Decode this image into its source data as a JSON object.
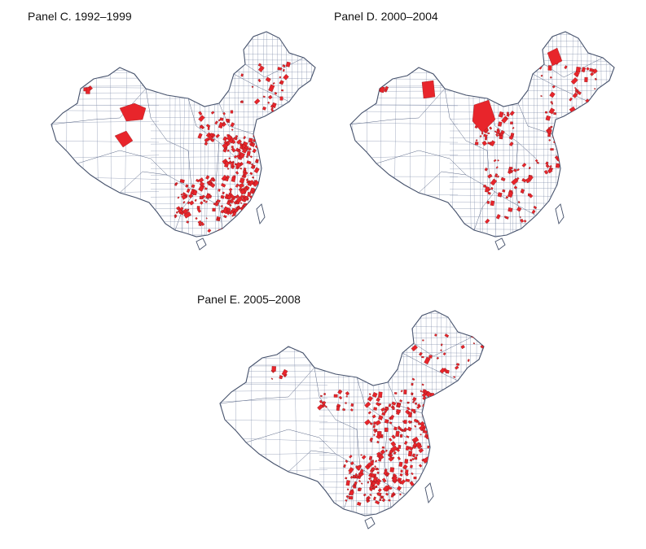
{
  "panels": [
    {
      "id": "C",
      "title": "Panel C. 1992–1999"
    },
    {
      "id": "D",
      "title": "Panel D. 2000–2004"
    },
    {
      "id": "E",
      "title": "Panel E. 2005–2008"
    }
  ],
  "colors": {
    "highlight": "#e8252b",
    "boundary": "#44506a",
    "background": "#ffffff"
  }
}
